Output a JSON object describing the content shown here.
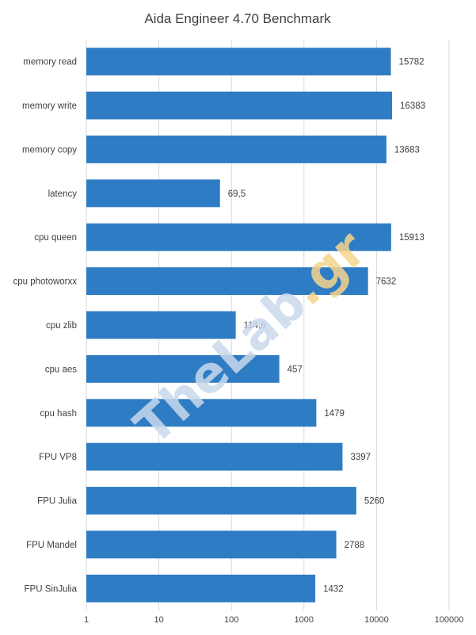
{
  "chart_data": {
    "type": "bar",
    "orientation": "horizontal",
    "title": "Aida Engineer 4.70 Benchmark",
    "categories": [
      "memory read",
      "memory write",
      "memory copy",
      "latency",
      "cpu queen",
      "cpu photoworxx",
      "cpu zlib",
      "cpu aes",
      "cpu hash",
      "FPU VP8",
      "FPU Julia",
      "FPU Mandel",
      "FPU SinJulia"
    ],
    "values": [
      15782,
      16383,
      13683,
      69.5,
      15913,
      7632,
      114.6,
      457,
      1479,
      3397,
      5260,
      2788,
      1432
    ],
    "value_labels": [
      "15782",
      "16383",
      "13683",
      "69,5",
      "15913",
      "7632",
      "114,6",
      "457",
      "1479",
      "3397",
      "5260",
      "2788",
      "1432"
    ],
    "x_scale": "log",
    "xlim": [
      1,
      100000
    ],
    "x_ticks": [
      "1",
      "10",
      "100",
      "1000",
      "10000",
      "100000"
    ],
    "xlabel": "",
    "ylabel": "",
    "grid": "vertical",
    "legend": "none",
    "bar_color": "#2E7CC4",
    "gridline_color": "#D9D9D9"
  },
  "watermark": {
    "part1": "TheLab",
    "part2": ".gr",
    "color1": "#C9D9EC",
    "color2": "#F6D48C"
  }
}
